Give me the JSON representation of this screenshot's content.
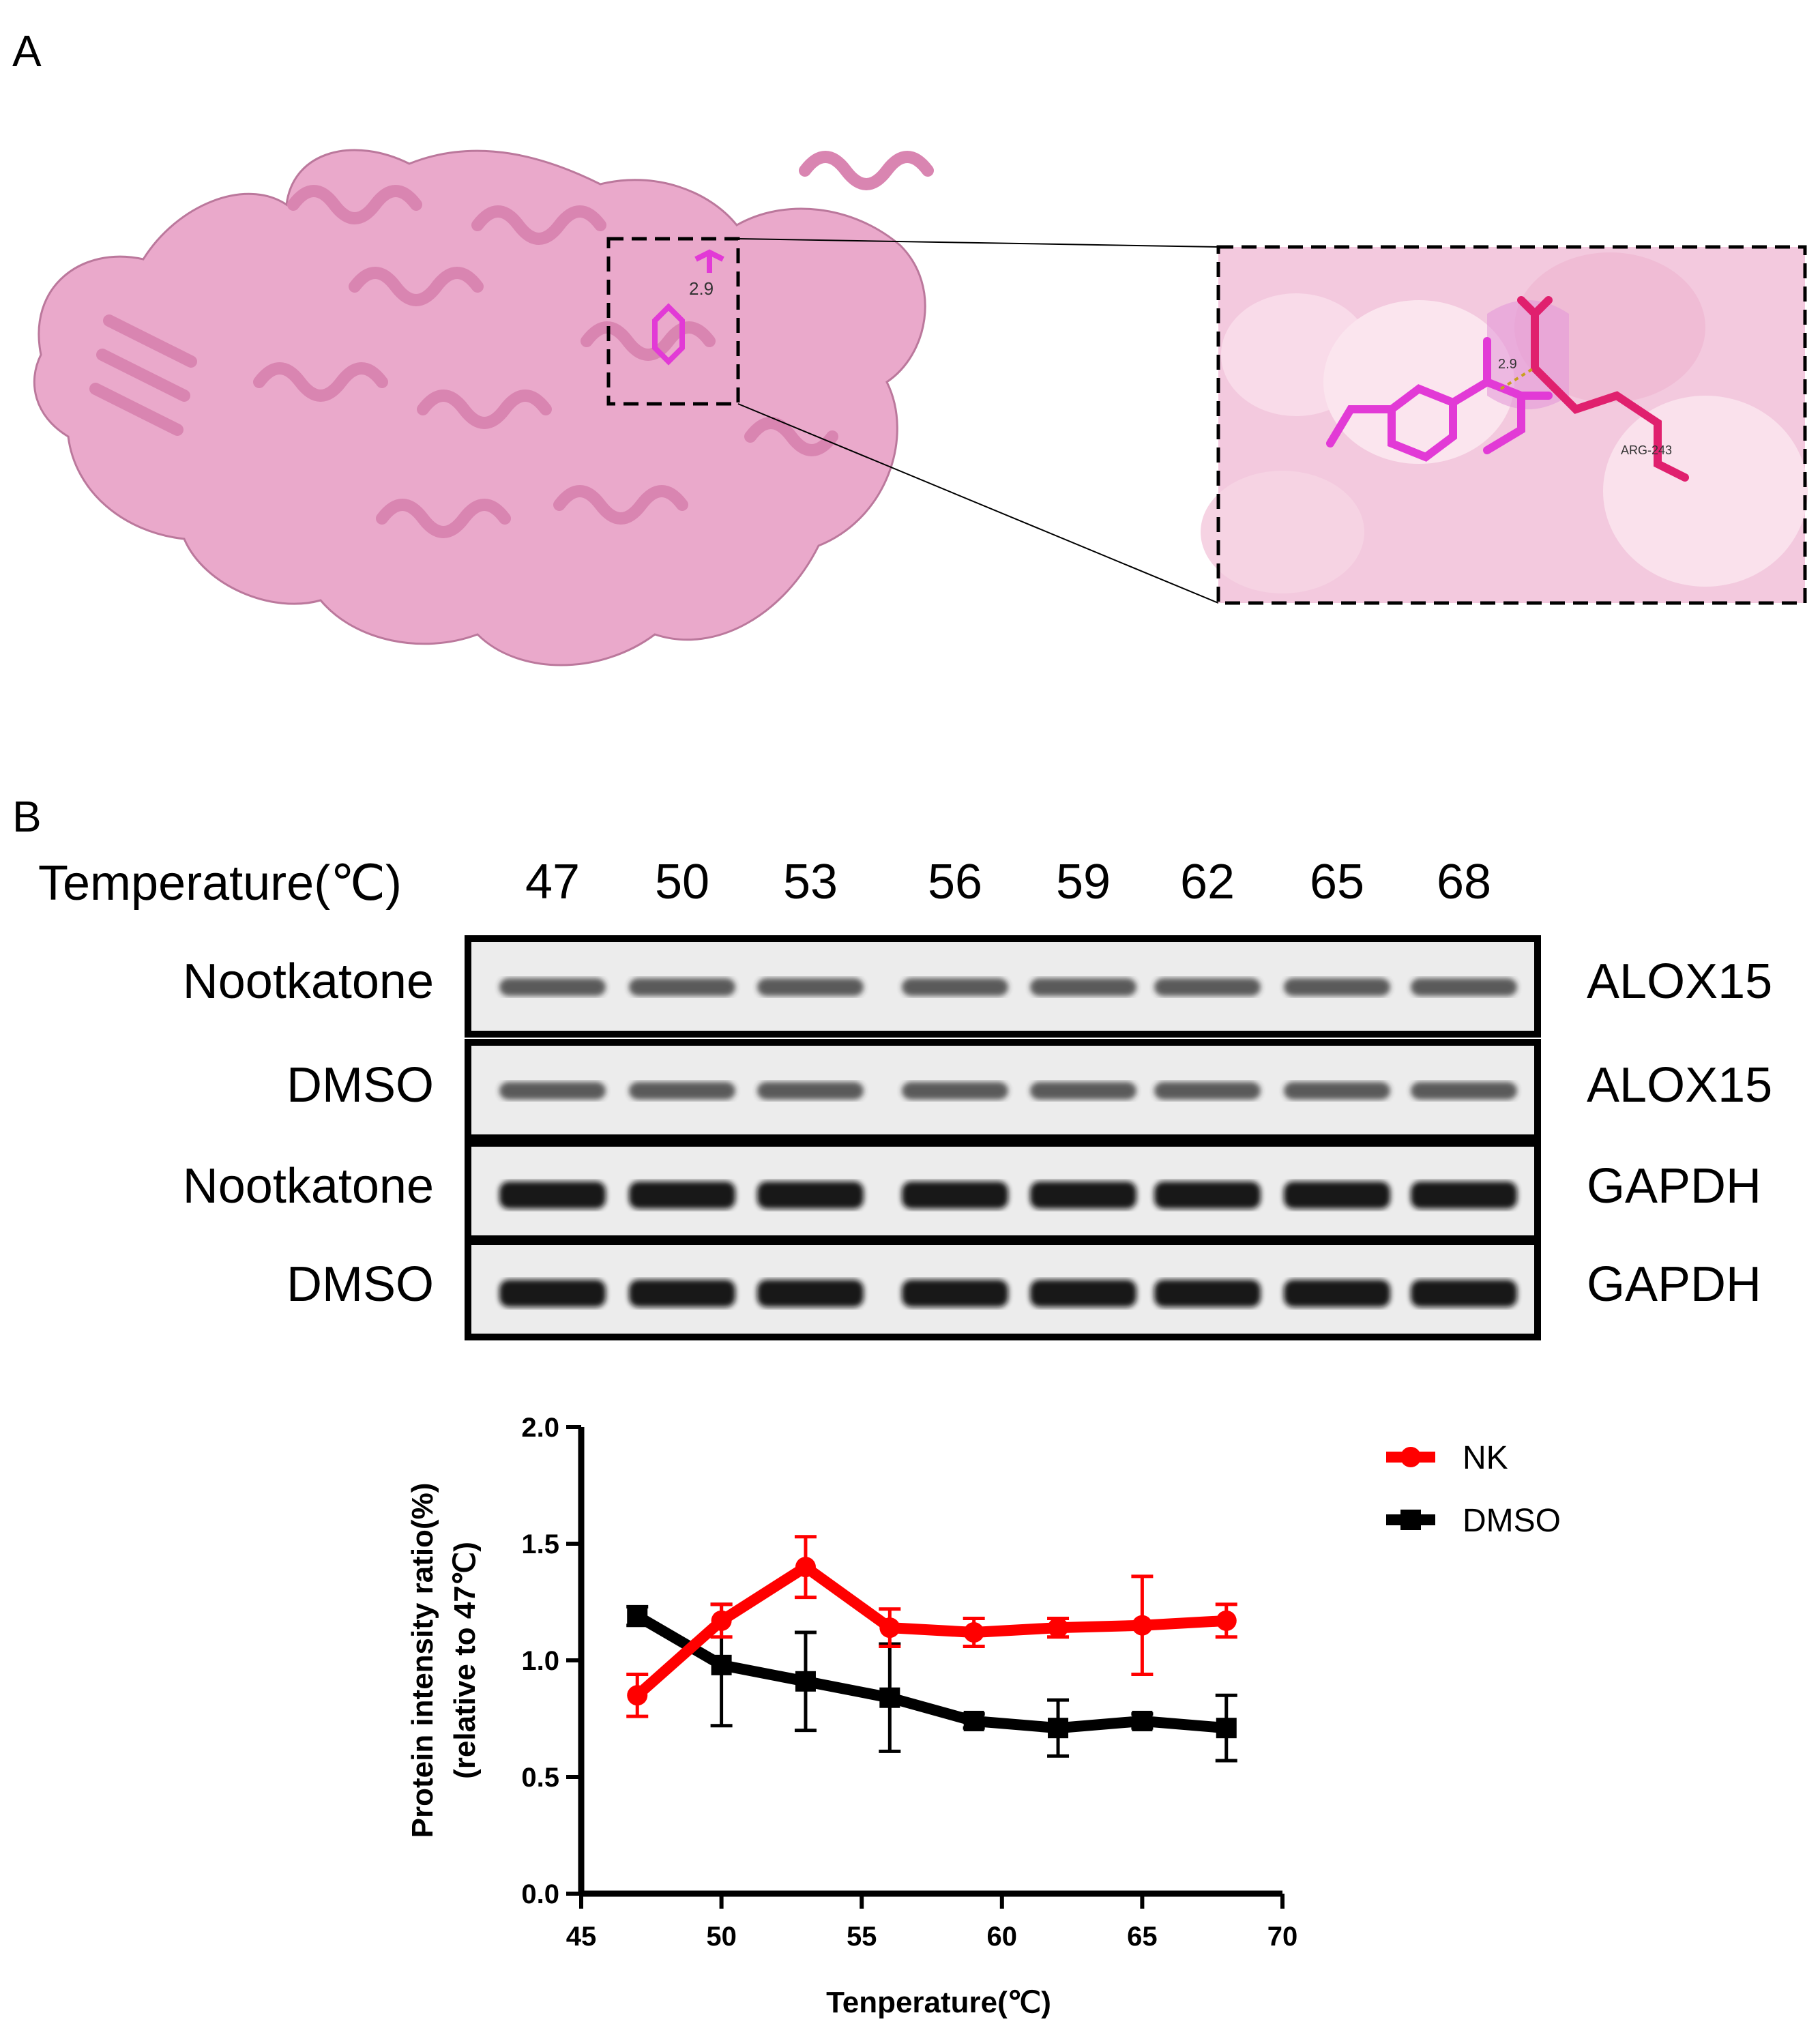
{
  "panels": {
    "a_label": "A",
    "b_label": "B"
  },
  "docking": {
    "distance_label_main": "2.9",
    "distance_label_zoom": "2.9",
    "residue_label": "ARG-243",
    "colors": {
      "protein": "#e8a0c6",
      "ligand": "#e23ad6",
      "residue": "#e0206e",
      "surface": "#f3c9de"
    }
  },
  "blot": {
    "temperature_header": "Temperature(℃)",
    "temperatures": [
      "47",
      "50",
      "53",
      "56",
      "59",
      "62",
      "65",
      "68"
    ],
    "rows": [
      {
        "treatment": "Nootkatone",
        "protein": "ALOX15"
      },
      {
        "treatment": "DMSO",
        "protein": "ALOX15"
      },
      {
        "treatment": "Nootkatone",
        "protein": "GAPDH"
      },
      {
        "treatment": "DMSO",
        "protein": "GAPDH"
      }
    ]
  },
  "chart_data": {
    "type": "line",
    "xlabel": "Tenperature(℃)",
    "ylabel_line1": "Protein intensity ratio(%)",
    "ylabel_line2": "(relative to 47℃)",
    "xlim": [
      45,
      70
    ],
    "ylim": [
      0,
      2.0
    ],
    "xticks": [
      "45",
      "50",
      "55",
      "60",
      "65",
      "70"
    ],
    "yticks": [
      "0.0",
      "0.5",
      "1.0",
      "1.5",
      "2.0"
    ],
    "legend_position": "top-right",
    "x": [
      47,
      50,
      53,
      56,
      59,
      62,
      65,
      68
    ],
    "series": [
      {
        "name": "NK",
        "color": "#ff0000",
        "marker": "circle",
        "values": [
          0.85,
          1.17,
          1.4,
          1.14,
          1.12,
          1.14,
          1.15,
          1.17
        ],
        "errors": [
          0.09,
          0.07,
          0.13,
          0.08,
          0.06,
          0.04,
          0.21,
          0.07
        ]
      },
      {
        "name": "DMSO",
        "color": "#000000",
        "marker": "square",
        "values": [
          1.19,
          0.98,
          0.91,
          0.84,
          0.74,
          0.71,
          0.74,
          0.71
        ],
        "errors": [
          0.04,
          0.26,
          0.21,
          0.23,
          0.03,
          0.12,
          0.03,
          0.14
        ]
      }
    ]
  }
}
